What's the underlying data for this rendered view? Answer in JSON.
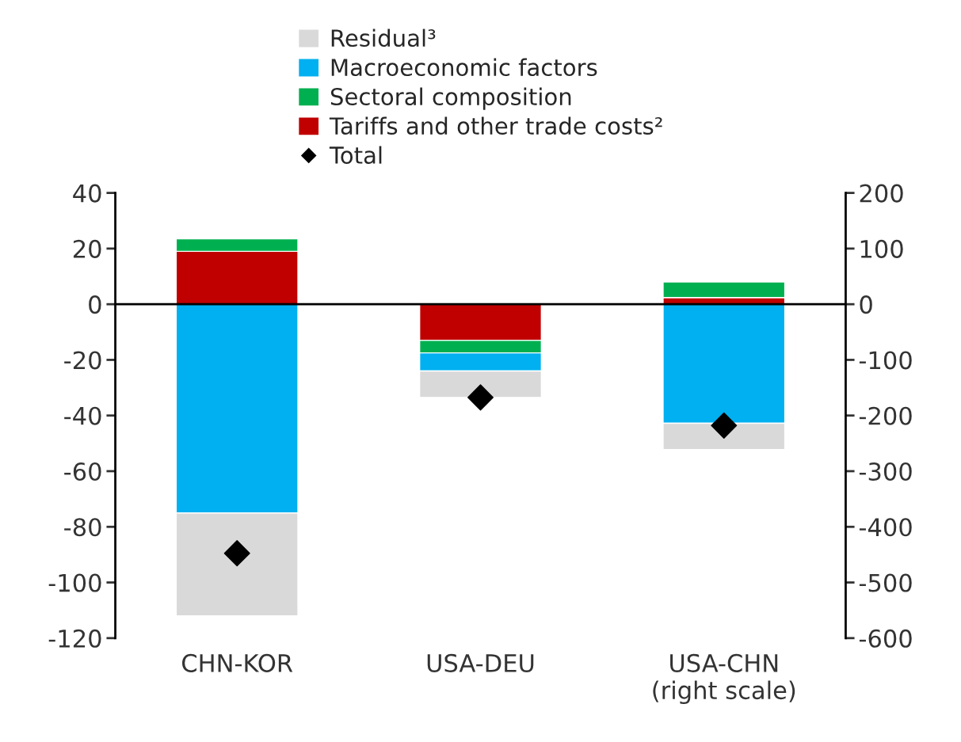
{
  "chart_data": {
    "type": "bar",
    "stacked": true,
    "categories": [
      "CHN-KOR",
      "USA-DEU",
      "USA-CHN\n(right scale)"
    ],
    "series": [
      {
        "name": "Tariffs and other trade costs²",
        "color": "#c00000",
        "values": [
          19,
          -13,
          null
        ]
      },
      {
        "name": "Sectoral composition",
        "color": "#00b050",
        "values": [
          4.5,
          -4.5,
          null
        ]
      },
      {
        "name": "Macroeconomic factors",
        "color": "#00b0f0",
        "values": [
          -75,
          -6.5,
          null
        ]
      },
      {
        "name": "Residual³",
        "color": "#d9d9d9",
        "values": [
          -37,
          -9.5,
          null
        ]
      },
      {
        "name": "Total",
        "type": "scatter",
        "marker": "diamond",
        "color": "#000000",
        "values": [
          -89.5,
          -33.5,
          null
        ]
      },
      {
        "color": "#c00000",
        "axis": "y2",
        "values": [
          null,
          null,
          12
        ]
      },
      {
        "color": "#00b050",
        "axis": "y2",
        "values": [
          null,
          null,
          28
        ]
      },
      {
        "color": "#00b0f0",
        "axis": "y2",
        "values": [
          null,
          null,
          -214
        ]
      },
      {
        "color": "#d9d9d9",
        "axis": "y2",
        "values": [
          null,
          null,
          -47
        ]
      },
      {
        "type": "scatter",
        "marker": "diamond",
        "color": "#000000",
        "axis": "y2",
        "values": [
          null,
          null,
          -218
        ]
      }
    ],
    "ylim": [
      -120,
      40
    ],
    "yticks": [
      -120,
      -100,
      -80,
      -60,
      -40,
      -20,
      0,
      20,
      40
    ],
    "y2lim": [
      -600,
      200
    ],
    "y2ticks": [
      -600,
      -500,
      -400,
      -300,
      -200,
      -100,
      0,
      100,
      200
    ],
    "ref_lines": [
      {
        "axis": "y",
        "value": 0,
        "color": "#000000"
      }
    ],
    "legend": "top",
    "grid": false
  }
}
